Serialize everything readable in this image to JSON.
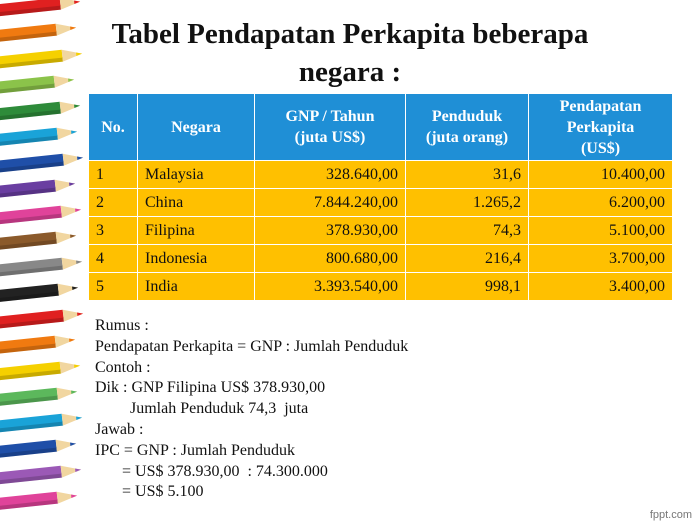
{
  "title": [
    "Tabel Pendapatan Perkapita beberapa",
    "negara :"
  ],
  "table": {
    "header": [
      [
        "No."
      ],
      [
        "Negara"
      ],
      [
        "GNP / Tahun",
        "(juta US$)"
      ],
      [
        "Penduduk",
        "(juta orang)"
      ],
      [
        "Pendapatan",
        "Perkapita",
        "(US$)"
      ]
    ],
    "rows": [
      [
        "1",
        "Malaysia",
        "328.640,00",
        "31,6",
        "10.400,00"
      ],
      [
        "2",
        "China",
        "7.844.240,00",
        "1.265,2",
        "6.200,00"
      ],
      [
        "3",
        "Filipina",
        "378.930,00",
        "74,3",
        "5.100,00"
      ],
      [
        "4",
        "Indonesia",
        "800.680,00",
        "216,4",
        "3.700,00"
      ],
      [
        "5",
        "India",
        "3.393.540,00",
        "998,1",
        "3.400,00"
      ]
    ]
  },
  "notes": [
    "Rumus :",
    "Pendapatan Perkapita = GNP : Jumlah Penduduk",
    "Contoh :",
    "Dik : GNP Filipina US$ 378.930,00",
    "Jumlah Penduduk 74,3  juta",
    "Jawab :",
    "IPC = GNP : Jumlah Penduduk",
    "= US$ 378.930,00  : 74.300.000",
    "= US$ 5.100"
  ],
  "footer": "fppt.com"
}
